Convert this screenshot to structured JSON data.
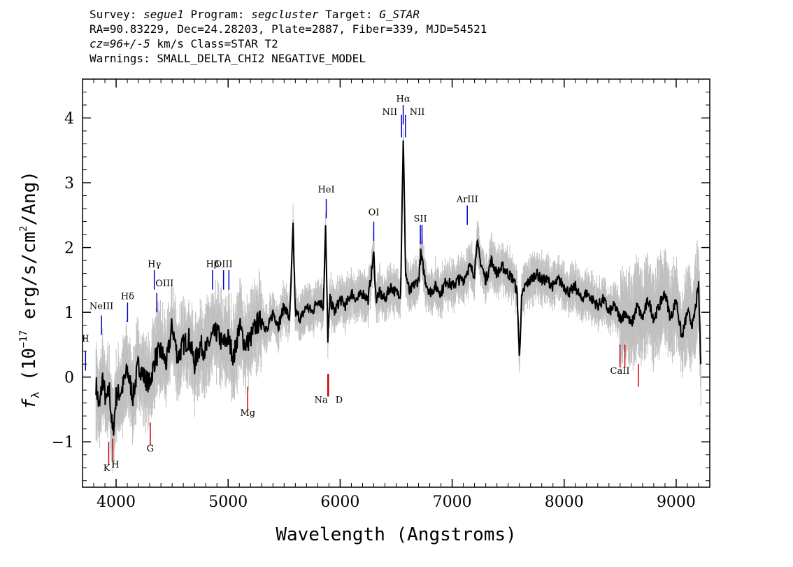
{
  "header": {
    "line1": {
      "survey_label": "Survey: ",
      "survey": "segue1",
      "program_label": " Program: ",
      "program": "segcluster",
      "target_label": " Target: ",
      "target": "G_STAR"
    },
    "line2": "RA=90.83229, Dec=24.28203, Plate=2887, Fiber=339, MJD=54521",
    "line3": {
      "cz": "cz=96+/-5",
      "rest": " km/s Class=STAR T2"
    },
    "line4": "Warnings: SMALL_DELTA_CHI2 NEGATIVE_MODEL"
  },
  "colors": {
    "flux": "#000000",
    "error_band": "#c0c0c0",
    "emission": "#0000cc",
    "absorption": "#cc0000"
  },
  "chart_data": {
    "type": "line",
    "xlabel": "Wavelength (Angstroms)",
    "ylabel_parts": {
      "f": "f",
      "lambda": "λ",
      "pre": " (10",
      "exp": "−17",
      "mid": " erg/s/cm",
      "exp2": "2",
      "post": "/Ang)"
    },
    "xlim": [
      3700,
      9300
    ],
    "ylim": [
      -1.7,
      4.6
    ],
    "x_ticks": [
      4000,
      5000,
      6000,
      7000,
      8000,
      9000
    ],
    "x_tick_labels": [
      "4000",
      "5000",
      "6000",
      "7000",
      "8000",
      "9000"
    ],
    "y_ticks": [
      -1,
      0,
      1,
      2,
      3,
      4
    ],
    "y_tick_labels": [
      "−1",
      "0",
      "1",
      "2",
      "3",
      "4"
    ],
    "series": [
      {
        "role": "flux",
        "points": [
          [
            3820,
            -0.1
          ],
          [
            3850,
            -0.5
          ],
          [
            3880,
            0.0
          ],
          [
            3910,
            -0.4
          ],
          [
            3940,
            -0.2
          ],
          [
            3970,
            -0.9
          ],
          [
            4000,
            -0.3
          ],
          [
            4050,
            -0.2
          ],
          [
            4100,
            0.1
          ],
          [
            4150,
            -0.3
          ],
          [
            4200,
            0.2
          ],
          [
            4250,
            0.0
          ],
          [
            4300,
            -0.1
          ],
          [
            4350,
            0.3
          ],
          [
            4400,
            0.4
          ],
          [
            4450,
            0.2
          ],
          [
            4500,
            0.8
          ],
          [
            4550,
            0.3
          ],
          [
            4600,
            0.5
          ],
          [
            4650,
            0.6
          ],
          [
            4700,
            0.2
          ],
          [
            4750,
            0.5
          ],
          [
            4800,
            0.4
          ],
          [
            4850,
            0.6
          ],
          [
            4900,
            0.7
          ],
          [
            4950,
            0.5
          ],
          [
            5000,
            0.6
          ],
          [
            5050,
            0.3
          ],
          [
            5100,
            0.8
          ],
          [
            5150,
            0.5
          ],
          [
            5200,
            0.6
          ],
          [
            5250,
            0.8
          ],
          [
            5300,
            0.9
          ],
          [
            5350,
            0.7
          ],
          [
            5400,
            1.0
          ],
          [
            5450,
            0.8
          ],
          [
            5500,
            1.1
          ],
          [
            5550,
            0.9
          ],
          [
            5580,
            2.3
          ],
          [
            5600,
            1.0
          ],
          [
            5650,
            0.9
          ],
          [
            5700,
            1.1
          ],
          [
            5750,
            1.0
          ],
          [
            5800,
            1.2
          ],
          [
            5850,
            1.1
          ],
          [
            5870,
            2.3
          ],
          [
            5890,
            0.6
          ],
          [
            5910,
            1.2
          ],
          [
            5950,
            1.0
          ],
          [
            6000,
            1.2
          ],
          [
            6050,
            1.1
          ],
          [
            6100,
            1.3
          ],
          [
            6150,
            1.2
          ],
          [
            6200,
            1.3
          ],
          [
            6250,
            1.2
          ],
          [
            6300,
            1.9
          ],
          [
            6320,
            1.2
          ],
          [
            6350,
            1.3
          ],
          [
            6400,
            1.2
          ],
          [
            6450,
            1.4
          ],
          [
            6500,
            1.3
          ],
          [
            6540,
            1.3
          ],
          [
            6563,
            3.7
          ],
          [
            6585,
            1.6
          ],
          [
            6620,
            1.3
          ],
          [
            6650,
            1.4
          ],
          [
            6700,
            1.5
          ],
          [
            6720,
            1.9
          ],
          [
            6760,
            1.5
          ],
          [
            6800,
            1.3
          ],
          [
            6850,
            1.4
          ],
          [
            6900,
            1.3
          ],
          [
            6950,
            1.5
          ],
          [
            7000,
            1.4
          ],
          [
            7050,
            1.5
          ],
          [
            7100,
            1.5
          ],
          [
            7150,
            1.7
          ],
          [
            7200,
            1.6
          ],
          [
            7220,
            2.1
          ],
          [
            7250,
            1.8
          ],
          [
            7300,
            1.5
          ],
          [
            7350,
            1.8
          ],
          [
            7400,
            1.6
          ],
          [
            7450,
            1.7
          ],
          [
            7500,
            1.6
          ],
          [
            7550,
            1.5
          ],
          [
            7580,
            1.3
          ],
          [
            7600,
            0.3
          ],
          [
            7620,
            1.2
          ],
          [
            7650,
            1.4
          ],
          [
            7700,
            1.5
          ],
          [
            7750,
            1.6
          ],
          [
            7800,
            1.5
          ],
          [
            7850,
            1.5
          ],
          [
            7900,
            1.4
          ],
          [
            7950,
            1.5
          ],
          [
            8000,
            1.4
          ],
          [
            8050,
            1.3
          ],
          [
            8100,
            1.4
          ],
          [
            8150,
            1.2
          ],
          [
            8200,
            1.3
          ],
          [
            8250,
            1.2
          ],
          [
            8300,
            1.1
          ],
          [
            8350,
            1.2
          ],
          [
            8400,
            1.0
          ],
          [
            8450,
            1.1
          ],
          [
            8500,
            0.9
          ],
          [
            8550,
            1.0
          ],
          [
            8600,
            0.8
          ],
          [
            8650,
            1.1
          ],
          [
            8700,
            0.9
          ],
          [
            8750,
            1.2
          ],
          [
            8800,
            0.9
          ],
          [
            8850,
            1.1
          ],
          [
            8900,
            1.3
          ],
          [
            8950,
            0.9
          ],
          [
            9000,
            1.2
          ],
          [
            9050,
            0.6
          ],
          [
            9100,
            1.0
          ],
          [
            9150,
            0.8
          ],
          [
            9200,
            1.4
          ],
          [
            9220,
            0.2
          ]
        ]
      }
    ],
    "annotations": [
      {
        "label": "II",
        "wave": 3727,
        "kind": "emission",
        "text_y": 0.55,
        "line_top": 0.4,
        "line_bottom": 0.1
      },
      {
        "label": "NeIII",
        "wave": 3869,
        "kind": "emission",
        "text_y": 1.05,
        "line_top": 0.95,
        "line_bottom": 0.65
      },
      {
        "label": "Hδ",
        "wave": 4102,
        "kind": "emission",
        "text_y": 1.2,
        "line_top": 1.15,
        "line_bottom": 0.85
      },
      {
        "label": "Hγ",
        "wave": 4341,
        "kind": "emission",
        "text_y": 1.7,
        "line_top": 1.65,
        "line_bottom": 1.35
      },
      {
        "label": "OIII",
        "wave": 4363,
        "kind": "emission",
        "text_y": 1.4,
        "line_top": 1.3,
        "line_bottom": 1.0
      },
      {
        "label": "Hβ",
        "wave": 4861,
        "kind": "emission",
        "text_y": 1.7,
        "line_top": 1.65,
        "line_bottom": 1.35
      },
      {
        "label": "OIII",
        "wave": 4959,
        "kind": "emission",
        "text_y": 1.7,
        "line_top": 1.65,
        "line_bottom": 1.35
      },
      {
        "label": "",
        "wave": 5007,
        "kind": "emission",
        "text_y": 1.7,
        "line_top": 1.65,
        "line_bottom": 1.35
      },
      {
        "label": "HeI",
        "wave": 5876,
        "kind": "emission",
        "text_y": 2.85,
        "line_top": 2.75,
        "line_bottom": 2.45
      },
      {
        "label": "OI",
        "wave": 6300,
        "kind": "emission",
        "text_y": 2.5,
        "line_top": 2.4,
        "line_bottom": 2.1
      },
      {
        "label": "NII",
        "wave": 6548,
        "kind": "emission",
        "text_y": 4.05,
        "line_top": 4.05,
        "line_bottom": 3.7
      },
      {
        "label": "Hα",
        "wave": 6563,
        "kind": "emission",
        "text_y": 4.25,
        "line_top": 4.2,
        "line_bottom": 3.9
      },
      {
        "label": "NII",
        "wave": 6583,
        "kind": "emission",
        "text_y": 4.05,
        "line_top": 4.05,
        "line_bottom": 3.7
      },
      {
        "label": "SII",
        "wave": 6716,
        "kind": "emission",
        "text_y": 2.4,
        "line_top": 2.35,
        "line_bottom": 2.05
      },
      {
        "label": "",
        "wave": 6731,
        "kind": "emission",
        "text_y": 2.4,
        "line_top": 2.35,
        "line_bottom": 2.05
      },
      {
        "label": "ArIII",
        "wave": 7135,
        "kind": "emission",
        "text_y": 2.7,
        "line_top": 2.65,
        "line_bottom": 2.35
      },
      {
        "label": "K",
        "wave": 3934,
        "kind": "absorption",
        "text_y": -1.45,
        "line_top": -1.0,
        "line_bottom": -1.35
      },
      {
        "label": "H",
        "wave": 3969,
        "kind": "absorption",
        "text_y": -1.4,
        "line_top": -0.95,
        "line_bottom": -1.3
      },
      {
        "label": "G",
        "wave": 4305,
        "kind": "absorption",
        "text_y": -1.15,
        "line_top": -0.7,
        "line_bottom": -1.05
      },
      {
        "label": "Mg",
        "wave": 5175,
        "kind": "absorption",
        "text_y": -0.6,
        "line_top": -0.15,
        "line_bottom": -0.5
      },
      {
        "label": "Na",
        "wave": 5890,
        "kind": "absorption",
        "text_y": -0.4,
        "line_top": 0.05,
        "line_bottom": -0.3
      },
      {
        "label": "D",
        "wave": 5896,
        "kind": "absorption",
        "text_y": -0.4,
        "line_top": 0.05,
        "line_bottom": -0.3
      },
      {
        "label": "CaII",
        "wave": 8498,
        "kind": "absorption",
        "text_y": 0.05,
        "line_top": 0.5,
        "line_bottom": 0.15
      },
      {
        "label": "",
        "wave": 8542,
        "kind": "absorption",
        "text_y": 0.05,
        "line_top": 0.5,
        "line_bottom": 0.15
      },
      {
        "label": "",
        "wave": 8662,
        "kind": "absorption",
        "text_y": 0.05,
        "line_top": 0.2,
        "line_bottom": -0.15
      }
    ]
  }
}
